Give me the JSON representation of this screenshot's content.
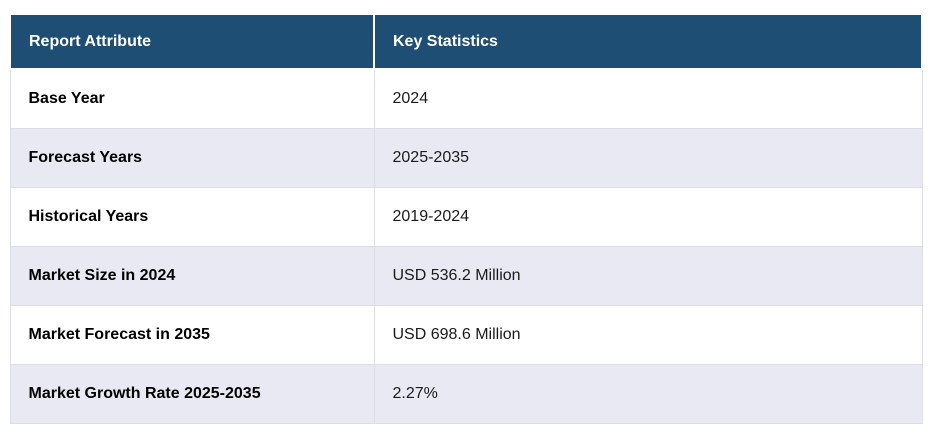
{
  "table": {
    "columns": [
      {
        "label": "Report Attribute"
      },
      {
        "label": "Key Statistics"
      }
    ],
    "rows": [
      {
        "attribute": "Base Year",
        "value": "2024"
      },
      {
        "attribute": "Forecast Years",
        "value": "2025-2035"
      },
      {
        "attribute": "Historical Years",
        "value": "2019-2024"
      },
      {
        "attribute": "Market Size in 2024",
        "value": "USD 536.2 Million"
      },
      {
        "attribute": "Market Forecast in 2035",
        "value": "USD 698.6 Million"
      },
      {
        "attribute": "Market Growth Rate 2025-2035",
        "value": "2.27%"
      }
    ]
  },
  "colors": {
    "header_bg": "#1e4e73",
    "row_alt_bg": "#e8e9f3",
    "row_bg": "#ffffff",
    "border": "#dcdde6",
    "header_text": "#ffffff",
    "body_text": "#1a1a1a"
  }
}
